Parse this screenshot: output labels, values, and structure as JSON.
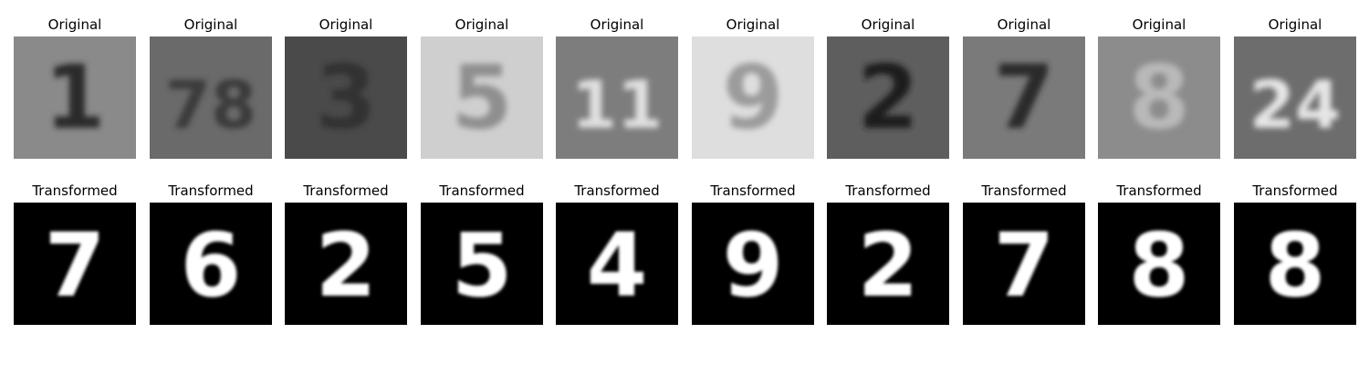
{
  "figure": {
    "rows": [
      {
        "row_id": "original",
        "panels": [
          {
            "title": "Original",
            "glyph": "1",
            "bg": "#8a8a8a",
            "fg": "#2a2a2a"
          },
          {
            "title": "Original",
            "glyph": "78",
            "bg": "#6a6a6a",
            "fg": "#3a3a3a"
          },
          {
            "title": "Original",
            "glyph": "3",
            "bg": "#4a4a4a",
            "fg": "#303030"
          },
          {
            "title": "Original",
            "glyph": "5",
            "bg": "#cfcfcf",
            "fg": "#8f8f8f"
          },
          {
            "title": "Original",
            "glyph": "11",
            "bg": "#7d7d7d",
            "fg": "#e0e0e0"
          },
          {
            "title": "Original",
            "glyph": "9",
            "bg": "#dedede",
            "fg": "#9b9b9b"
          },
          {
            "title": "Original",
            "glyph": "2",
            "bg": "#5e5e5e",
            "fg": "#1f1f1f"
          },
          {
            "title": "Original",
            "glyph": "7",
            "bg": "#7a7a7a",
            "fg": "#2b2b2b"
          },
          {
            "title": "Original",
            "glyph": "8",
            "bg": "#8c8c8c",
            "fg": "#b9b9b9"
          },
          {
            "title": "Original",
            "glyph": "24",
            "bg": "#6d6d6d",
            "fg": "#e6e6e6"
          }
        ]
      },
      {
        "row_id": "transformed",
        "panels": [
          {
            "title": "Transformed",
            "glyph": "7",
            "bg": "#000000",
            "fg": "#ffffff"
          },
          {
            "title": "Transformed",
            "glyph": "6",
            "bg": "#000000",
            "fg": "#ffffff"
          },
          {
            "title": "Transformed",
            "glyph": "2",
            "bg": "#000000",
            "fg": "#ffffff"
          },
          {
            "title": "Transformed",
            "glyph": "5",
            "bg": "#000000",
            "fg": "#ffffff"
          },
          {
            "title": "Transformed",
            "glyph": "4",
            "bg": "#000000",
            "fg": "#ffffff"
          },
          {
            "title": "Transformed",
            "glyph": "9",
            "bg": "#000000",
            "fg": "#ffffff"
          },
          {
            "title": "Transformed",
            "glyph": "2",
            "bg": "#000000",
            "fg": "#ffffff"
          },
          {
            "title": "Transformed",
            "glyph": "7",
            "bg": "#000000",
            "fg": "#ffffff"
          },
          {
            "title": "Transformed",
            "glyph": "8",
            "bg": "#000000",
            "fg": "#ffffff"
          },
          {
            "title": "Transformed",
            "glyph": "8",
            "bg": "#000000",
            "fg": "#ffffff"
          }
        ]
      }
    ]
  }
}
